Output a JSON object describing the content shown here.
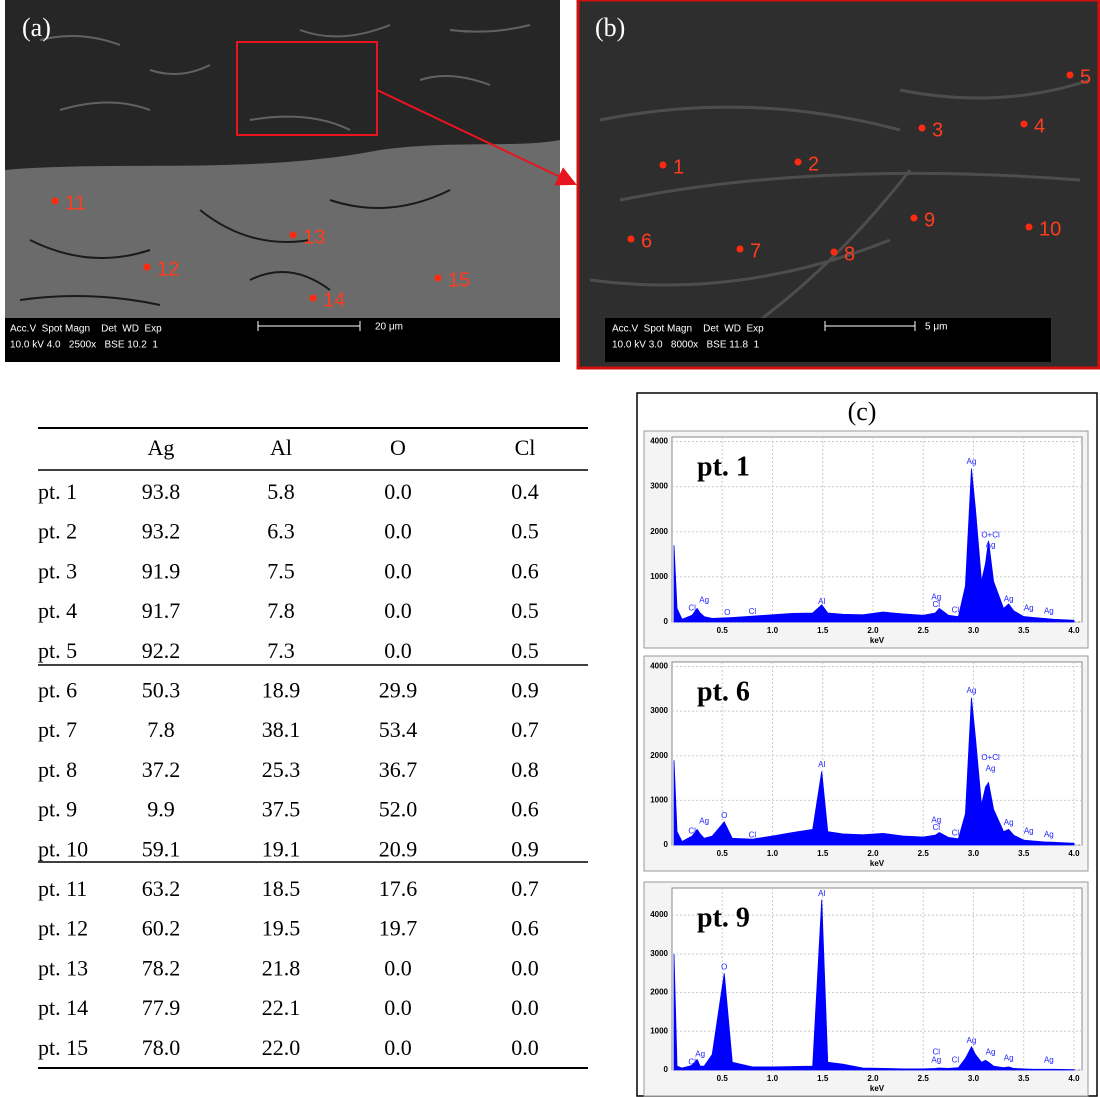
{
  "panel_a": {
    "label": "(a)",
    "points": [
      "11",
      "12",
      "13",
      "14",
      "15"
    ],
    "info_line1": "Acc.V  Spot Magn    Det  WD  Exp",
    "info_line2": "10.0 kV 4.0   2500x   BSE 10.2  1",
    "scale": "20 μm"
  },
  "panel_b": {
    "label": "(b)",
    "points": [
      "1",
      "2",
      "3",
      "4",
      "5",
      "6",
      "7",
      "8",
      "9",
      "10"
    ],
    "info_line1": "Acc.V  Spot Magn    Det  WD  Exp",
    "info_line2": "10.0 kV 3.0   8000x   BSE 11.8  1",
    "scale": "5 μm"
  },
  "table": {
    "header": [
      "Ag",
      "Al",
      "O",
      "Cl"
    ],
    "rows": [
      [
        "pt. 1",
        "93.8",
        "5.8",
        "0.0",
        "0.4"
      ],
      [
        "pt. 2",
        "93.2",
        "6.3",
        "0.0",
        "0.5"
      ],
      [
        "pt. 3",
        "91.9",
        "7.5",
        "0.0",
        "0.6"
      ],
      [
        "pt. 4",
        "91.7",
        "7.8",
        "0.0",
        "0.5"
      ],
      [
        "pt. 5",
        "92.2",
        "7.3",
        "0.0",
        "0.5"
      ],
      [
        "pt. 6",
        "50.3",
        "18.9",
        "29.9",
        "0.9"
      ],
      [
        "pt. 7",
        "7.8",
        "38.1",
        "53.4",
        "0.7"
      ],
      [
        "pt. 8",
        "37.2",
        "25.3",
        "36.7",
        "0.8"
      ],
      [
        "pt. 9",
        "9.9",
        "37.5",
        "52.0",
        "0.6"
      ],
      [
        "pt. 10",
        "59.1",
        "19.1",
        "20.9",
        "0.9"
      ],
      [
        "pt. 11",
        "63.2",
        "18.5",
        "17.6",
        "0.7"
      ],
      [
        "pt. 12",
        "60.2",
        "19.5",
        "19.7",
        "0.6"
      ],
      [
        "pt. 13",
        "78.2",
        "21.8",
        "0.0",
        "0.0"
      ],
      [
        "pt. 14",
        "77.9",
        "22.1",
        "0.0",
        "0.0"
      ],
      [
        "pt. 15",
        "78.0",
        "22.0",
        "0.0",
        "0.0"
      ]
    ]
  },
  "panel_c": {
    "label": "(c)",
    "x": [
      0.02,
      0.05,
      0.1,
      0.2,
      0.25,
      0.28,
      0.32,
      0.4,
      0.52,
      0.6,
      0.8,
      1.0,
      1.2,
      1.4,
      1.49,
      1.55,
      1.7,
      1.9,
      2.1,
      2.3,
      2.5,
      2.62,
      2.66,
      2.75,
      2.85,
      2.92,
      2.98,
      3.02,
      3.08,
      3.12,
      3.15,
      3.2,
      3.3,
      3.35,
      3.4,
      3.5,
      3.6,
      3.7,
      3.8,
      4.0
    ],
    "charts": [
      {
        "type": "area",
        "title": "pt. 1",
        "x_label": "keV",
        "color": "#0000ff",
        "xlim": [
          0,
          4.08
        ],
        "ylim": [
          0,
          4100
        ],
        "xticks": [
          0.5,
          {
            "value": 1,
            "label": "1.0"
          },
          1.5,
          {
            "value": 2,
            "label": "2.0"
          },
          2.5,
          {
            "value": 3,
            "label": "3.0"
          },
          3.5,
          {
            "value": 4,
            "label": "4.0"
          }
        ],
        "yticks": [
          0,
          1000,
          2000,
          3000,
          4000
        ],
        "values": [
          1700,
          300,
          60,
          150,
          300,
          200,
          120,
          80,
          90,
          100,
          130,
          160,
          190,
          200,
          380,
          200,
          170,
          160,
          220,
          180,
          150,
          200,
          300,
          150,
          120,
          800,
          3400,
          2500,
          900,
          1300,
          1800,
          900,
          300,
          400,
          250,
          120,
          100,
          80,
          60,
          40
        ],
        "peak_labels": [
          "Cl",
          "Ag",
          "O",
          "Cl",
          "Al",
          "Ag",
          "Cl",
          "Cl",
          "Ag",
          "O+Cl",
          "Ag",
          "Ag",
          "Ag",
          "Ag"
        ]
      },
      {
        "type": "area",
        "title": "pt. 6",
        "x_label": "keV",
        "color": "#0000ff",
        "xlim": [
          0,
          4.08
        ],
        "ylim": [
          0,
          4100
        ],
        "xticks": [
          0.5,
          {
            "value": 1,
            "label": "1.0"
          },
          1.5,
          {
            "value": 2,
            "label": "2.0"
          },
          2.5,
          {
            "value": 3,
            "label": "3.0"
          },
          3.5,
          {
            "value": 4,
            "label": "4.0"
          }
        ],
        "yticks": [
          0,
          1000,
          2000,
          3000,
          4000
        ],
        "values": [
          1900,
          300,
          80,
          200,
          350,
          250,
          150,
          200,
          520,
          150,
          130,
          200,
          280,
          350,
          1650,
          300,
          250,
          230,
          260,
          200,
          180,
          220,
          280,
          170,
          140,
          700,
          3300,
          2400,
          900,
          1300,
          1400,
          800,
          300,
          350,
          220,
          110,
          90,
          70,
          60,
          40
        ],
        "peak_labels": [
          "Cl",
          "Ag",
          "O",
          "Cl",
          "Al",
          "Ag",
          "Cl",
          "Cl",
          "Ag",
          "O+Cl",
          "Ag",
          "Ag",
          "Ag",
          "Ag"
        ]
      },
      {
        "type": "area",
        "title": "pt. 9",
        "x_label": "keV",
        "color": "#0000ff",
        "xlim": [
          0,
          4.08
        ],
        "ylim": [
          0,
          4700
        ],
        "xticks": [
          0.5,
          {
            "value": 1,
            "label": "1.0"
          },
          1.5,
          {
            "value": 2,
            "label": "2.0"
          },
          2.5,
          {
            "value": 3,
            "label": "3.0"
          },
          3.5,
          {
            "value": 4,
            "label": "4.0"
          }
        ],
        "yticks": [
          0,
          1000,
          2000,
          3000,
          4000
        ],
        "values": [
          3000,
          100,
          50,
          120,
          270,
          100,
          100,
          400,
          2500,
          200,
          80,
          80,
          90,
          100,
          4400,
          200,
          150,
          50,
          40,
          30,
          30,
          40,
          50,
          40,
          60,
          300,
          600,
          400,
          200,
          250,
          200,
          100,
          60,
          80,
          40,
          30,
          20,
          20,
          20,
          10
        ],
        "peak_labels": [
          "Cl",
          "Ag",
          "O",
          "Al",
          "Cl",
          "Ag",
          "Cl",
          "Ag",
          "Ag",
          "Ag",
          "Ag"
        ]
      }
    ]
  }
}
